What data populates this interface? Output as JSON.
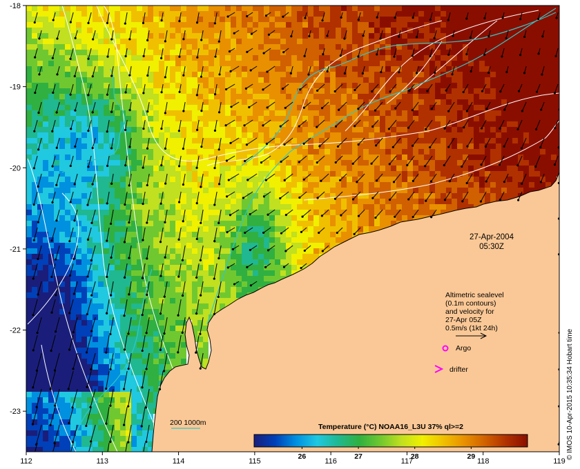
{
  "map": {
    "lon_range": [
      112,
      119
    ],
    "lat_range": [
      -23.5,
      -18
    ],
    "x_ticks": [
      {
        "value": 112,
        "label": "112"
      },
      {
        "value": 113,
        "label": "113"
      },
      {
        "value": 114,
        "label": "114"
      },
      {
        "value": 115,
        "label": "115"
      },
      {
        "value": 116,
        "label": "116"
      },
      {
        "value": 117,
        "label": "117"
      },
      {
        "value": 118,
        "label": "118"
      },
      {
        "value": 119,
        "label": "119"
      }
    ],
    "y_ticks": [
      {
        "value": -18,
        "label": "-18"
      },
      {
        "value": -19,
        "label": "-19"
      },
      {
        "value": -20,
        "label": "-20"
      },
      {
        "value": -21,
        "label": "-21"
      },
      {
        "value": -22,
        "label": "-22"
      },
      {
        "value": -23,
        "label": "-23"
      }
    ],
    "land_color": "#fac896",
    "sst_colors": [
      "#1a1e7a",
      "#0040b8",
      "#0090e0",
      "#20c8e0",
      "#20b890",
      "#30b040",
      "#70c830",
      "#c0e020",
      "#f0f000",
      "#f0c000",
      "#e89000",
      "#d06000",
      "#b03000",
      "#8a0e00"
    ]
  },
  "date_label": {
    "line1": "27-Apr-2004",
    "line2": "05:30Z"
  },
  "legend": {
    "altimetry_lines": [
      "Altimetric sealevel",
      "(0.1m contours)",
      "and velocity for",
      "27-Apr 05Z",
      "0.5m/s (1kt 24h)"
    ],
    "argo_label": "Argo",
    "drifter_label": "drifter",
    "argo_color": "#ff00ff",
    "drifter_color": "#ff00ff",
    "depth_label": "200  1000m",
    "depth_color": "#30c8c8"
  },
  "colorbar": {
    "title": "Temperature (°C) NOAA16_L3U 37% ql>=2",
    "ticks": [
      {
        "value": 26,
        "label": "26"
      },
      {
        "value": 27,
        "label": "27"
      },
      {
        "value": 28,
        "label": "28"
      },
      {
        "value": 29,
        "label": "29"
      }
    ],
    "range": [
      25.15,
      30.0
    ]
  },
  "credit": "© IMOS 10-Apr-2015 10:35:34 Hobart time"
}
